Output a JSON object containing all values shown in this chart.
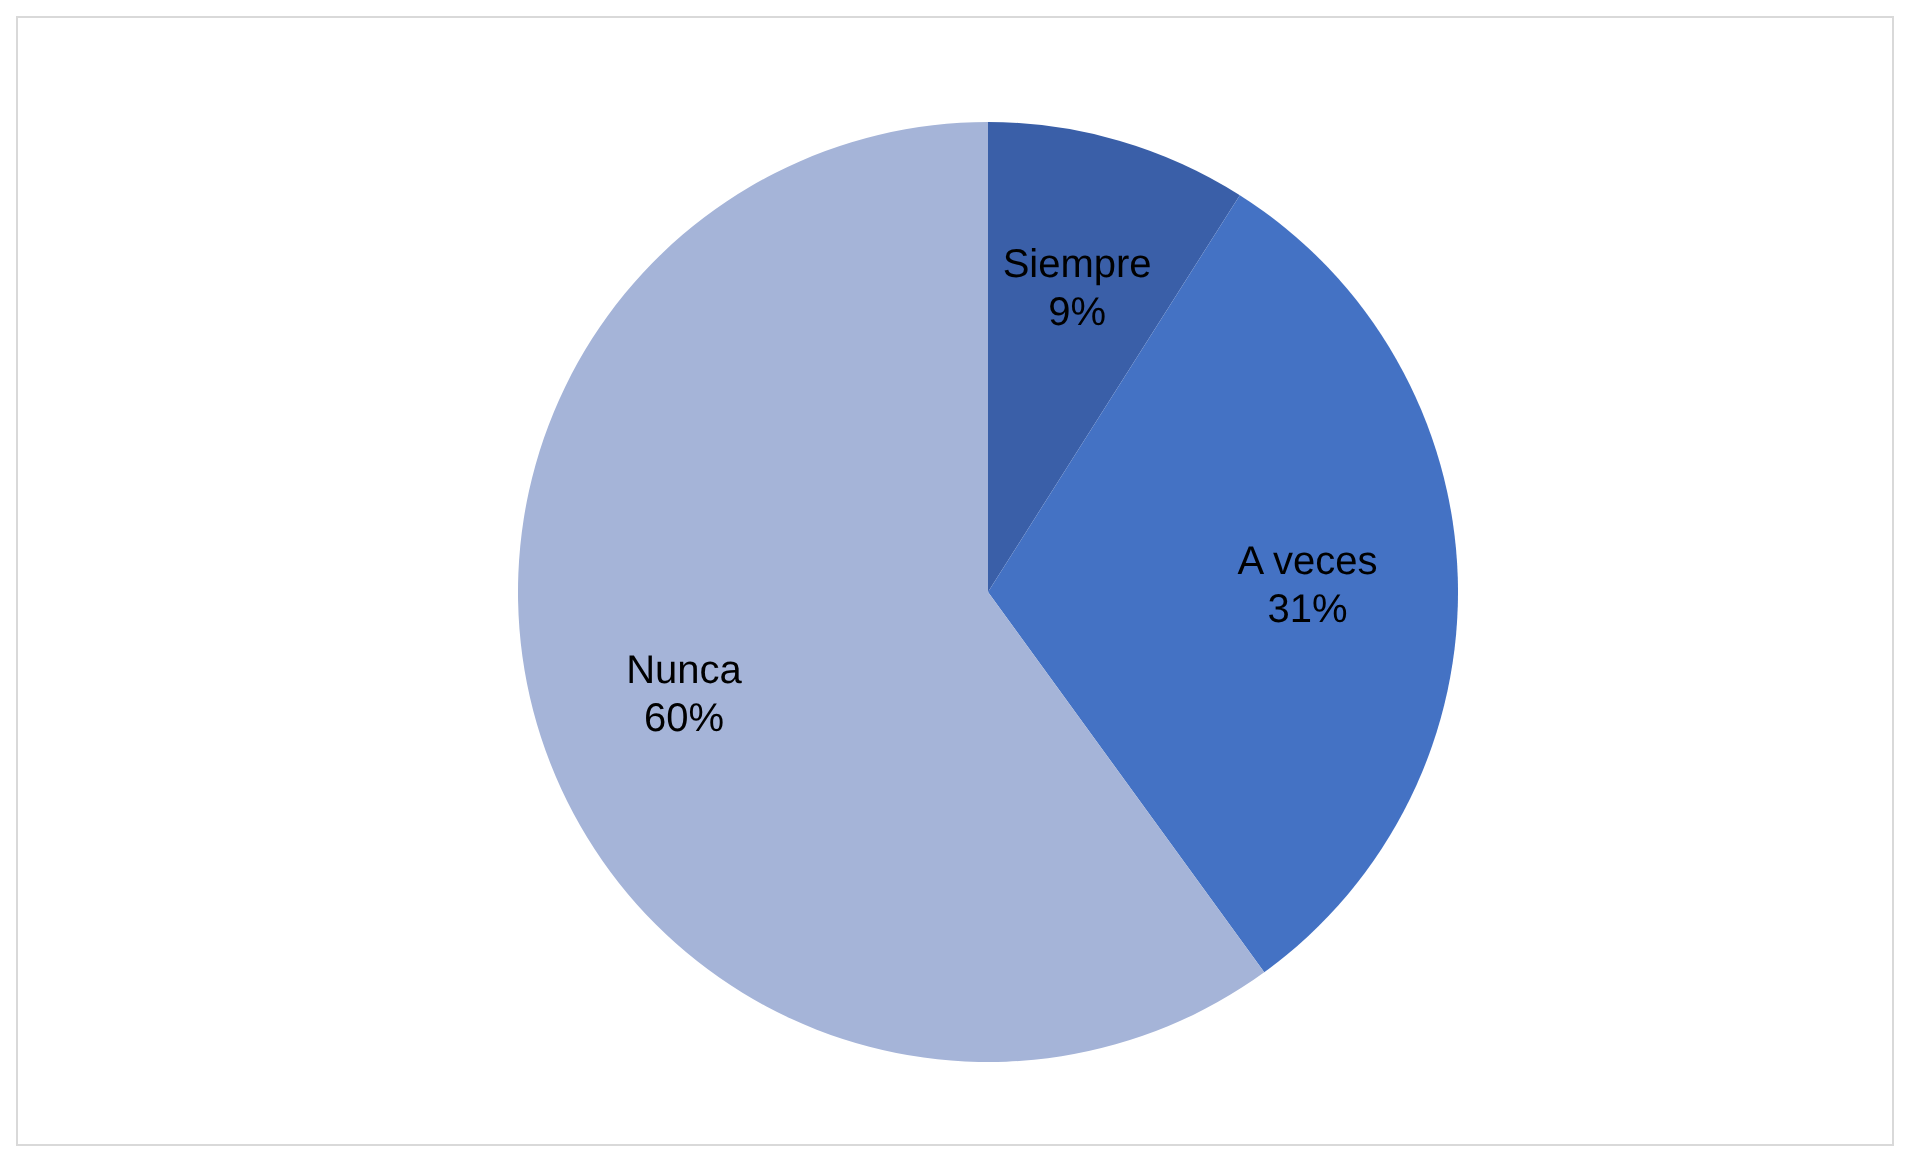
{
  "chart_data": {
    "type": "pie",
    "categories": [
      "Siempre",
      "A veces",
      "Nunca"
    ],
    "values": [
      9,
      31,
      60
    ],
    "colors": [
      "#3a5fa8",
      "#4472c4",
      "#a5b4d8"
    ],
    "value_labels": [
      "9%",
      "31%",
      "60%"
    ]
  }
}
